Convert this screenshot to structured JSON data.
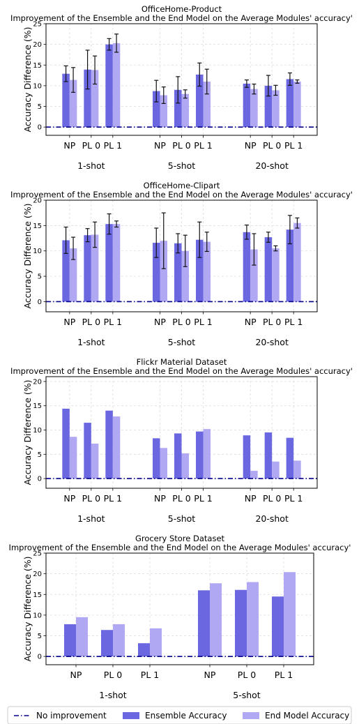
{
  "colors": {
    "ensemble": "#6b67e0",
    "end_model": "#b1a8f3",
    "baseline": "#00008b"
  },
  "legend": {
    "placement": "bottom",
    "items": [
      {
        "key": "baseline",
        "label": "No improvement"
      },
      {
        "key": "ensemble",
        "label": "Ensemble Accuracy"
      },
      {
        "key": "end_model",
        "label": "End Model Accuracy"
      }
    ]
  },
  "chart_data": [
    {
      "type": "bar",
      "title": "OfficeHome-Product",
      "subtitle": "Improvement of the Ensemble and the End Model on the Average Modules' accuracy'",
      "ylabel": "Accuracy Difference (%)",
      "ylim": [
        -2,
        25
      ],
      "yticks": [
        0,
        5,
        10,
        15,
        20,
        25
      ],
      "grid": true,
      "groups": [
        {
          "label": "1-shot",
          "categories": [
            "NP",
            "PL 0",
            "PL 1"
          ]
        },
        {
          "label": "5-shot",
          "categories": [
            "NP",
            "PL 0",
            "PL 1"
          ]
        },
        {
          "label": "20-shot",
          "categories": [
            "NP",
            "PL 0",
            "PL 1"
          ]
        }
      ],
      "series": [
        {
          "name": "Ensemble Accuracy",
          "key": "ensemble",
          "values": [
            12.9,
            13.9,
            20.0,
            8.7,
            9.0,
            12.7,
            10.5,
            10.0,
            11.6
          ],
          "errors": [
            1.9,
            4.7,
            1.4,
            2.6,
            3.2,
            2.8,
            0.9,
            2.5,
            1.5
          ]
        },
        {
          "name": "End Model Accuracy",
          "key": "end_model",
          "values": [
            11.4,
            13.8,
            20.3,
            7.7,
            8.0,
            11.0,
            9.2,
            8.9,
            11.0
          ],
          "errors": [
            3.0,
            3.4,
            2.2,
            2.0,
            1.0,
            3.0,
            1.2,
            1.2,
            0.4
          ]
        }
      ]
    },
    {
      "type": "bar",
      "title": "OfficeHome-Clipart",
      "subtitle": "Improvement of the Ensemble and the End Model on the Average Modules' accuracy'",
      "ylabel": "Accuracy Difference (%)",
      "ylim": [
        -2,
        20
      ],
      "yticks": [
        0,
        5,
        10,
        15,
        20
      ],
      "grid": true,
      "groups": [
        {
          "label": "1-shot",
          "categories": [
            "NP",
            "PL 0",
            "PL 1"
          ]
        },
        {
          "label": "5-shot",
          "categories": [
            "NP",
            "PL 0",
            "PL 1"
          ]
        },
        {
          "label": "20-shot",
          "categories": [
            "NP",
            "PL 0",
            "PL 1"
          ]
        }
      ],
      "series": [
        {
          "name": "Ensemble Accuracy",
          "key": "ensemble",
          "values": [
            12.1,
            13.1,
            15.3,
            11.6,
            11.5,
            12.2,
            13.7,
            12.7,
            14.2
          ],
          "errors": [
            2.6,
            1.3,
            2.0,
            2.9,
            1.9,
            3.5,
            1.4,
            1.0,
            2.8
          ]
        },
        {
          "name": "End Model Accuracy",
          "key": "end_model",
          "values": [
            10.5,
            13.2,
            15.3,
            12.0,
            10.0,
            11.8,
            10.3,
            10.5,
            15.5
          ],
          "errors": [
            2.2,
            2.5,
            0.6,
            5.5,
            3.1,
            1.9,
            3.1,
            0.5,
            1.0
          ]
        }
      ]
    },
    {
      "type": "bar",
      "title": "Flickr Material Dataset",
      "subtitle": "Improvement of the Ensemble and the End Model on the Average Modules' accuracy'",
      "ylabel": "Accuracy Difference (%)",
      "ylim": [
        -2,
        21
      ],
      "yticks": [
        0,
        5,
        10,
        15,
        20
      ],
      "grid": true,
      "groups": [
        {
          "label": "1-shot",
          "categories": [
            "NP",
            "PL 0",
            "PL 1"
          ]
        },
        {
          "label": "5-shot",
          "categories": [
            "NP",
            "PL 0",
            "PL 1"
          ]
        },
        {
          "label": "20-shot",
          "categories": [
            "NP",
            "PL 0",
            "PL 1"
          ]
        }
      ],
      "series": [
        {
          "name": "Ensemble Accuracy",
          "key": "ensemble",
          "values": [
            14.4,
            11.5,
            14.0,
            8.3,
            9.3,
            9.7,
            8.9,
            9.5,
            8.4
          ]
        },
        {
          "name": "End Model Accuracy",
          "key": "end_model",
          "values": [
            8.6,
            7.2,
            12.8,
            6.3,
            5.2,
            10.2,
            1.6,
            3.5,
            3.7
          ]
        }
      ]
    },
    {
      "type": "bar",
      "title": "Grocery Store Dataset",
      "subtitle": "Improvement of the Ensemble and the End Model on the Average Modules' accuracy'",
      "ylabel": "Accuracy Difference (%)",
      "ylim": [
        -2,
        25
      ],
      "yticks": [
        0,
        5,
        10,
        15,
        20,
        25
      ],
      "grid": true,
      "groups": [
        {
          "label": "1-shot",
          "categories": [
            "NP",
            "PL 0",
            "PL 1"
          ]
        },
        {
          "label": "5-shot",
          "categories": [
            "NP",
            "PL 0",
            "PL 1"
          ]
        }
      ],
      "series": [
        {
          "name": "Ensemble Accuracy",
          "key": "ensemble",
          "values": [
            7.8,
            6.4,
            3.2,
            16.0,
            16.1,
            14.5
          ]
        },
        {
          "name": "End Model Accuracy",
          "key": "end_model",
          "values": [
            9.5,
            7.8,
            6.8,
            17.7,
            18.0,
            20.4
          ]
        }
      ]
    }
  ]
}
